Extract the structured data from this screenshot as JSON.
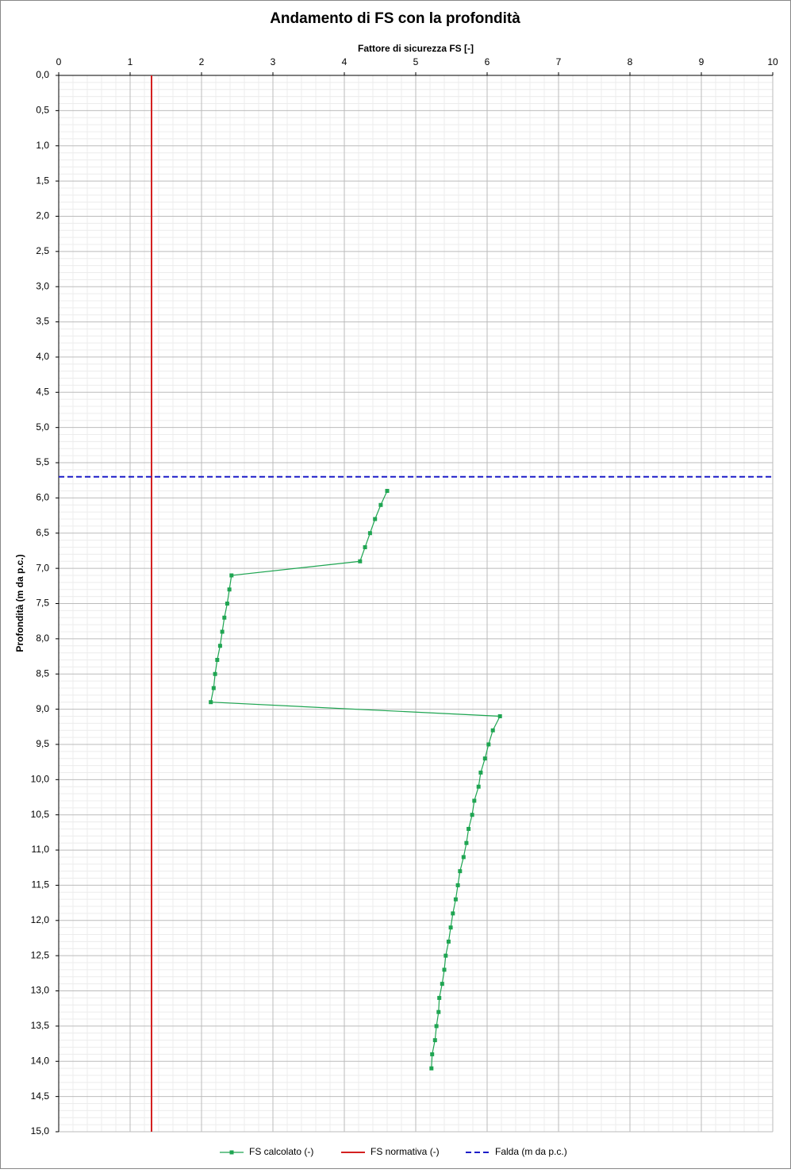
{
  "chart_data": {
    "type": "line",
    "title": "Andamento di FS con la profondità",
    "x_label": "Fattore di sicurezza FS [-]",
    "y_label": "Profondità (m da p.c.)",
    "xlim": [
      0,
      10
    ],
    "xticks": [
      0,
      1,
      2,
      3,
      4,
      5,
      6,
      7,
      8,
      9,
      10
    ],
    "ylim": [
      0,
      15
    ],
    "y_reversed": true,
    "yticks": [
      {
        "value": 0,
        "label": "0,0"
      },
      {
        "value": 0.5,
        "label": "0,5"
      },
      {
        "value": 1,
        "label": "1,0"
      },
      {
        "value": 1.5,
        "label": "1,5"
      },
      {
        "value": 2,
        "label": "2,0"
      },
      {
        "value": 2.5,
        "label": "2,5"
      },
      {
        "value": 3,
        "label": "3,0"
      },
      {
        "value": 3.5,
        "label": "3,5"
      },
      {
        "value": 4,
        "label": "4,0"
      },
      {
        "value": 4.5,
        "label": "4,5"
      },
      {
        "value": 5,
        "label": "5,0"
      },
      {
        "value": 5.5,
        "label": "5,5"
      },
      {
        "value": 6,
        "label": "6,0"
      },
      {
        "value": 6.5,
        "label": "6,5"
      },
      {
        "value": 7,
        "label": "7,0"
      },
      {
        "value": 7.5,
        "label": "7,5"
      },
      {
        "value": 8,
        "label": "8,0"
      },
      {
        "value": 8.5,
        "label": "8,5"
      },
      {
        "value": 9,
        "label": "9,0"
      },
      {
        "value": 9.5,
        "label": "9,5"
      },
      {
        "value": 10,
        "label": "10,0"
      },
      {
        "value": 10.5,
        "label": "10,5"
      },
      {
        "value": 11,
        "label": "11,0"
      },
      {
        "value": 11.5,
        "label": "11,5"
      },
      {
        "value": 12,
        "label": "12,0"
      },
      {
        "value": 12.5,
        "label": "12,5"
      },
      {
        "value": 13,
        "label": "13,0"
      },
      {
        "value": 13.5,
        "label": "13,5"
      },
      {
        "value": 14,
        "label": "14,0"
      },
      {
        "value": 14.5,
        "label": "14,5"
      },
      {
        "value": 15,
        "label": "15,0"
      }
    ],
    "grid": true,
    "minor_divisions": 5,
    "legend": "bottom",
    "series": [
      {
        "name": "FS calcolato (-)",
        "color": "#1fa552",
        "marker": "square",
        "depths": [
          5.9,
          6.1,
          6.3,
          6.5,
          6.7,
          6.9,
          7.1,
          7.3,
          7.5,
          7.7,
          7.9,
          8.1,
          8.3,
          8.5,
          8.7,
          8.9,
          9.1,
          9.3,
          9.5,
          9.7,
          9.9,
          10.1,
          10.3,
          10.5,
          10.7,
          10.9,
          11.1,
          11.3,
          11.5,
          11.7,
          11.9,
          12.1,
          12.3,
          12.5,
          12.7,
          12.9,
          13.1,
          13.3,
          13.5,
          13.7,
          13.9,
          14.1
        ],
        "values": [
          4.6,
          4.51,
          4.43,
          4.36,
          4.29,
          4.22,
          2.42,
          2.39,
          2.36,
          2.32,
          2.29,
          2.26,
          2.22,
          2.19,
          2.17,
          2.13,
          6.18,
          6.08,
          6.02,
          5.97,
          5.91,
          5.88,
          5.82,
          5.79,
          5.74,
          5.71,
          5.67,
          5.62,
          5.59,
          5.56,
          5.52,
          5.49,
          5.46,
          5.42,
          5.4,
          5.37,
          5.33,
          5.32,
          5.29,
          5.27,
          5.23,
          5.22
        ]
      },
      {
        "name": "FS normativa (-)",
        "color": "#d42020",
        "value": 1.3
      },
      {
        "name": "Falda (m da p.c.)",
        "color": "#1c1cc8",
        "dashed": true,
        "depth": 5.7
      }
    ]
  }
}
